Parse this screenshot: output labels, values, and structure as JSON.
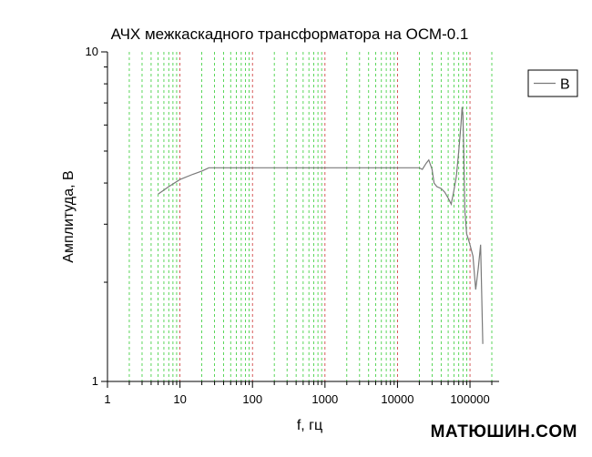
{
  "chart_data": {
    "type": "line",
    "title": "АЧХ межкаскадного трансформатора на ОСМ-0.1",
    "xlabel": "f, гц",
    "ylabel": "Амплитуда, В",
    "xscale": "log",
    "yscale": "log",
    "xlim": [
      1,
      200000
    ],
    "ylim": [
      1,
      10
    ],
    "x_ticks": [
      1,
      10,
      100,
      1000,
      10000,
      100000
    ],
    "x_tick_labels": [
      "1",
      "10",
      "100",
      "1000",
      "10000",
      "100000"
    ],
    "y_ticks": [
      1,
      10
    ],
    "y_tick_labels": [
      "1",
      "10"
    ],
    "legend_position": "top-right",
    "series": [
      {
        "name": "B",
        "color": "#7a7a7a",
        "x": [
          5,
          7,
          10,
          15,
          20,
          25,
          30,
          50,
          100,
          200,
          500,
          1000,
          2000,
          5000,
          10000,
          15000,
          20000,
          22000,
          25000,
          27000,
          30000,
          32000,
          35000,
          40000,
          45000,
          50000,
          55000,
          60000,
          65000,
          70000,
          75000,
          78000,
          80000,
          82000,
          85000,
          90000,
          95000,
          100000,
          110000,
          120000,
          130000,
          140000,
          150000
        ],
        "y": [
          3.7,
          3.9,
          4.1,
          4.25,
          4.35,
          4.45,
          4.45,
          4.45,
          4.45,
          4.45,
          4.45,
          4.45,
          4.45,
          4.45,
          4.45,
          4.45,
          4.45,
          4.4,
          4.6,
          4.7,
          4.4,
          4.0,
          3.9,
          3.85,
          3.75,
          3.6,
          3.45,
          3.8,
          4.2,
          5.0,
          6.0,
          6.8,
          6.4,
          5.0,
          3.3,
          2.8,
          2.7,
          2.6,
          2.4,
          1.9,
          2.2,
          2.6,
          1.3
        ]
      }
    ],
    "gridlines": {
      "minor_color": "#33cc33",
      "decade_color": "#cc3333",
      "style": "dashed"
    }
  },
  "watermark": "МАТЮШИН.COM"
}
